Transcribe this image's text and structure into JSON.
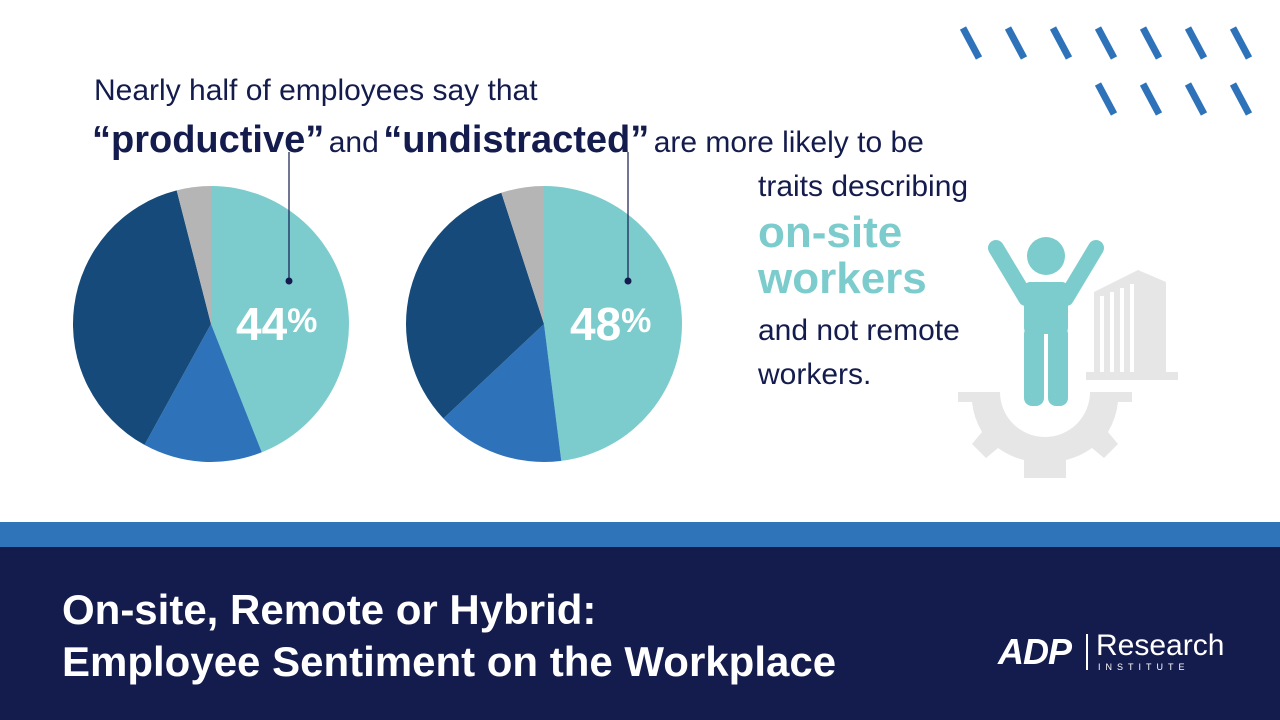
{
  "headline": {
    "line1": "Nearly half of employees say that",
    "quote1": "“productive”",
    "and": "and",
    "quote2": "“undistracted”",
    "tail": "are more likely to be"
  },
  "side": {
    "line1": "traits describing",
    "accent1": "on-site",
    "accent2": "workers",
    "line2": "and not remote",
    "line3": "workers."
  },
  "footer": {
    "title_line1": "On-site, Remote or Hybrid:",
    "title_line2": "Employee Sentiment on the Workplace"
  },
  "logo": {
    "brand": "ADP",
    "research": "Research",
    "institute": "INSTITUTE"
  },
  "colors": {
    "navy": "#141b4d",
    "dark_blue": "#154a7a",
    "mid_blue": "#2e73b9",
    "teal": "#7ccccd",
    "gray": "#b5b5b5",
    "light_gray": "#e6e6e6",
    "band_blue": "#2f74b8"
  },
  "icons": [
    "person-icon",
    "building-icon",
    "gear-icon",
    "diagonal-dash-pattern"
  ],
  "chart_data": [
    {
      "type": "pie",
      "label_text": "44%",
      "callout": "“productive”",
      "slices": [
        {
          "value": 44,
          "color": "#7ccccd"
        },
        {
          "value": 14,
          "color": "#2e73b9"
        },
        {
          "value": 38,
          "color": "#154a7a"
        },
        {
          "value": 4,
          "color": "#b5b5b5"
        }
      ]
    },
    {
      "type": "pie",
      "label_text": "48%",
      "callout": "“undistracted”",
      "slices": [
        {
          "value": 48,
          "color": "#7ccccd"
        },
        {
          "value": 15,
          "color": "#2e73b9"
        },
        {
          "value": 32,
          "color": "#154a7a"
        },
        {
          "value": 5,
          "color": "#b5b5b5"
        }
      ]
    }
  ]
}
